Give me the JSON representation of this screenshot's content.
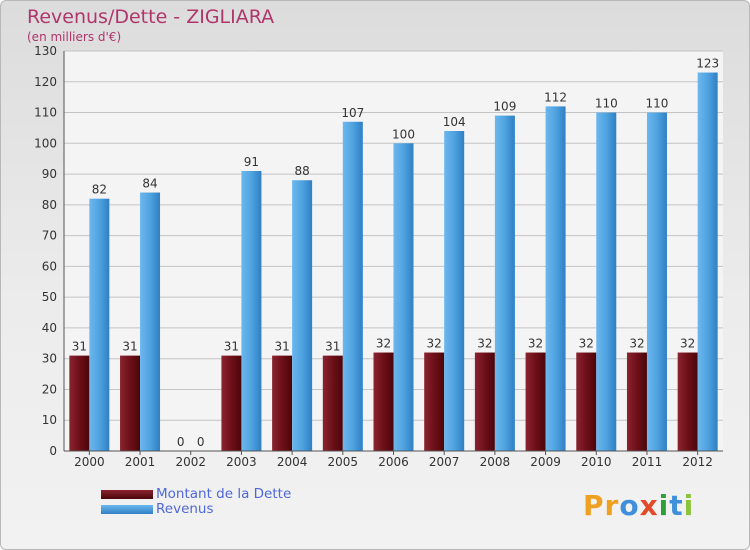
{
  "title": "Revenus/Dette - ZIGLIARA",
  "subtitle": "(en milliers d'€)",
  "colors": {
    "title": "#b0356a",
    "dette": "#6e0f18",
    "revenus": "#4fa3e0",
    "legend_text": "#4f67d8"
  },
  "legend": [
    {
      "label": "Montant de la Dette",
      "color": "#6e0f18"
    },
    {
      "label": "Revenus",
      "color": "#4fa3e0"
    }
  ],
  "logo": {
    "letters": [
      "P",
      "r",
      "o",
      "x",
      "i",
      "t",
      "i"
    ],
    "colors": [
      "#f0a020",
      "#f0a020",
      "#3f8fdc",
      "#e24a2a",
      "#2ea03a",
      "#3f8fdc",
      "#8ac43a"
    ]
  },
  "chart_data": {
    "type": "bar",
    "categories": [
      "2000",
      "2001",
      "2002",
      "2003",
      "2004",
      "2005",
      "2006",
      "2007",
      "2008",
      "2009",
      "2010",
      "2011",
      "2012"
    ],
    "series": [
      {
        "name": "Montant de la Dette",
        "values": [
          31,
          31,
          0,
          31,
          31,
          31,
          32,
          32,
          32,
          32,
          32,
          32,
          32
        ]
      },
      {
        "name": "Revenus",
        "values": [
          82,
          84,
          0,
          91,
          88,
          107,
          100,
          104,
          109,
          112,
          110,
          110,
          123
        ]
      }
    ],
    "ylim": [
      0,
      130
    ],
    "yticks": [
      0,
      10,
      20,
      30,
      40,
      50,
      60,
      70,
      80,
      90,
      100,
      110,
      120,
      130
    ],
    "grid": true,
    "legend_position": "bottom-left"
  }
}
